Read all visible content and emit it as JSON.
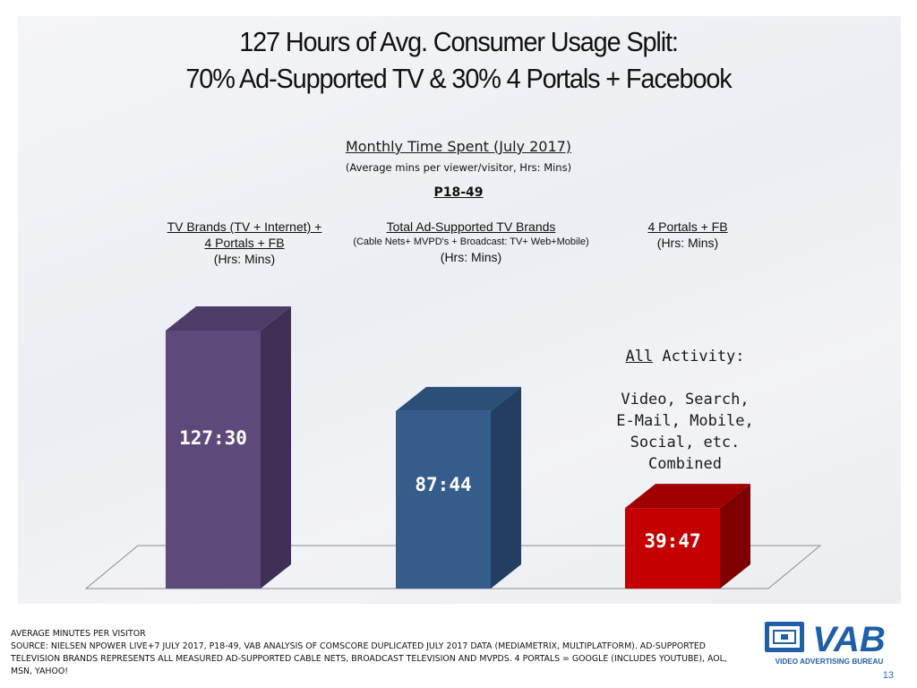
{
  "header": {
    "title_line1": "127 Hours of Avg. Consumer Usage Split:",
    "title_line2": "70% Ad-Supported TV & 30% 4 Portals + Facebook"
  },
  "chart_data": {
    "type": "bar",
    "title": "Monthly Time Spent (July 2017)",
    "subtitle": "(Average mins per viewer/visitor, Hrs: Mins)",
    "demo": "P18-49",
    "categories": [
      {
        "line1": "TV Brands (TV + Internet) +",
        "line2": "4 Portals + FB",
        "line3": "(Hrs: Mins)"
      },
      {
        "line1": "Total Ad-Supported TV Brands",
        "line2": "(Cable  Nets+ MVPD's + Broadcast: TV+ Web+Mobile)",
        "line3": "(Hrs: Mins)"
      },
      {
        "line1": "4 Portals + FB",
        "line2": "(Hrs: Mins)",
        "line3": ""
      }
    ],
    "values": [
      127.5,
      87.733,
      39.783
    ],
    "value_labels": [
      "127:30",
      "87:44",
      "39:47"
    ],
    "ylim": [
      0,
      127.5
    ],
    "grid": false,
    "colors": [
      {
        "front": "#5e4a7a",
        "side": "#3f2f57",
        "top": "#4e3c68"
      },
      {
        "front": "#355d8c",
        "side": "#223f62",
        "top": "#2c4f78"
      },
      {
        "front": "#c40000",
        "side": "#7e0000",
        "top": "#a00000"
      }
    ]
  },
  "annotation": {
    "line1_underlined": "All",
    "line1_rest": " Activity:",
    "line2": "Video, Search,",
    "line3": "E-Mail, Mobile,",
    "line4": "Social, etc.",
    "line5": "Combined"
  },
  "footer": {
    "line1": "AVERAGE MINUTES PER VISITOR",
    "line2": "SOURCE: NIELSEN NPOWER LIVE+7 JULY 2017, P18-49, VAB ANALYSIS OF COMSCORE DUPLICATED JULY 2017 DATA (MEDIAMETRIX, MULTIPLATFORM).  AD-SUPPORTED TELEVISION BRANDS REPRESENTS ALL MEASURED AD-SUPPORTED CABLE NETS, BROADCAST TELEVISION AND MVPDS.  4 PORTALS = GOOGLE (INCLUDES YOUTUBE), AOL, MSN, YAHOO!"
  },
  "logo": {
    "wordmark": "VAB",
    "tagline": "VIDEO ADVERTISING BUREAU",
    "color": "#1f5fa8"
  },
  "page_number": "13"
}
